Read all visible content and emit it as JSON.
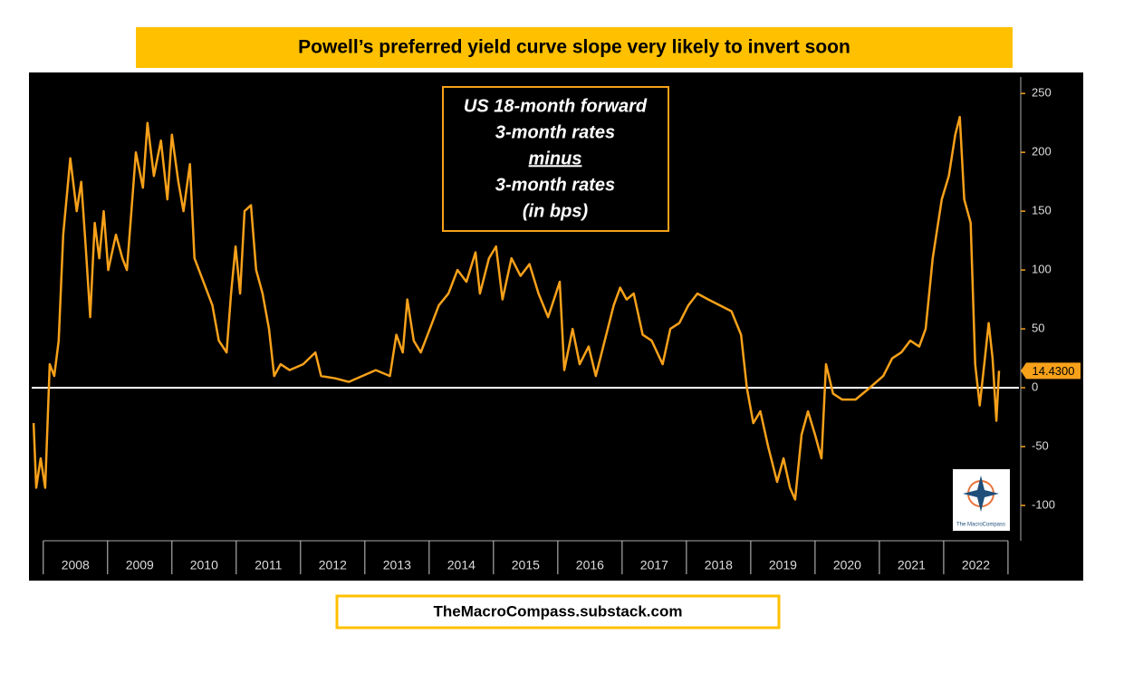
{
  "chart_data": {
    "type": "line",
    "title": "Powell’s preferred yield curve slope very likely to invert soon",
    "annotation": [
      "US 18-month forward",
      "3-month rates",
      "minus",
      "3-month rates",
      "(in bps)"
    ],
    "footer": "TheMacroCompass.substack.com",
    "logo": "The MacroCompass",
    "color": "#f7a11a",
    "zero_line": 0,
    "last_value": {
      "value": 14.43,
      "label": "14.4300"
    },
    "x": [
      2007.85,
      2007.89,
      2007.96,
      2008.03,
      2008.1,
      2008.17,
      2008.24,
      2008.31,
      2008.42,
      2008.52,
      2008.59,
      2008.66,
      2008.73,
      2008.8,
      2008.87,
      2008.94,
      2009.01,
      2009.13,
      2009.23,
      2009.3,
      2009.37,
      2009.44,
      2009.55,
      2009.62,
      2009.72,
      2009.83,
      2009.93,
      2010.0,
      2010.1,
      2010.18,
      2010.28,
      2010.35,
      2010.49,
      2010.63,
      2010.73,
      2010.85,
      2010.92,
      2010.99,
      2011.06,
      2011.13,
      2011.23,
      2011.31,
      2011.41,
      2011.51,
      2011.59,
      2011.69,
      2011.83,
      2012.04,
      2012.23,
      2012.32,
      2012.54,
      2012.75,
      2012.96,
      2013.17,
      2013.39,
      2013.49,
      2013.59,
      2013.66,
      2013.76,
      2013.87,
      2014.01,
      2014.15,
      2014.3,
      2014.44,
      2014.58,
      2014.72,
      2014.79,
      2014.93,
      2015.04,
      2015.14,
      2015.28,
      2015.42,
      2015.56,
      2015.7,
      2015.85,
      2016.03,
      2016.1,
      2016.23,
      2016.34,
      2016.48,
      2016.59,
      2016.73,
      2016.87,
      2016.97,
      2017.07,
      2017.18,
      2017.32,
      2017.46,
      2017.63,
      2017.75,
      2017.89,
      2018.03,
      2018.17,
      2018.34,
      2018.52,
      2018.7,
      2018.85,
      2018.94,
      2019.04,
      2019.15,
      2019.27,
      2019.41,
      2019.51,
      2019.61,
      2019.69,
      2019.79,
      2019.89,
      2020.0,
      2020.1,
      2020.17,
      2020.28,
      2020.42,
      2020.63,
      2020.85,
      2021.06,
      2021.2,
      2021.34,
      2021.48,
      2021.62,
      2021.72,
      2021.83,
      2021.97,
      2022.08,
      2022.18,
      2022.25,
      2022.32,
      2022.42,
      2022.49,
      2022.56,
      2022.63,
      2022.7,
      2022.76,
      2022.82,
      2022.86
    ],
    "values": [
      -30,
      -85,
      -60,
      -85,
      20,
      10,
      40,
      130,
      195,
      150,
      175,
      120,
      60,
      140,
      110,
      150,
      100,
      130,
      110,
      100,
      150,
      200,
      170,
      225,
      180,
      210,
      160,
      215,
      175,
      150,
      190,
      110,
      90,
      70,
      40,
      30,
      80,
      120,
      80,
      150,
      155,
      100,
      80,
      50,
      10,
      20,
      15,
      20,
      30,
      10,
      8,
      5,
      10,
      15,
      10,
      45,
      30,
      75,
      40,
      30,
      50,
      70,
      80,
      100,
      90,
      115,
      80,
      110,
      120,
      75,
      110,
      95,
      105,
      80,
      60,
      90,
      15,
      50,
      20,
      35,
      10,
      40,
      70,
      85,
      75,
      80,
      45,
      40,
      20,
      50,
      55,
      70,
      80,
      75,
      70,
      65,
      45,
      0,
      -30,
      -20,
      -50,
      -80,
      -60,
      -85,
      -95,
      -40,
      -20,
      -40,
      -60,
      20,
      -5,
      -10,
      -10,
      0,
      10,
      25,
      30,
      40,
      35,
      50,
      110,
      160,
      180,
      215,
      230,
      160,
      140,
      20,
      -15,
      20,
      55,
      25,
      -28,
      14.43
    ],
    "xlim": [
      2007.82,
      2023.17
    ],
    "xticks": [
      2008,
      2009,
      2010,
      2011,
      2012,
      2013,
      2014,
      2015,
      2016,
      2017,
      2018,
      2019,
      2020,
      2021,
      2022
    ],
    "ylim": [
      -130,
      264
    ],
    "yticks": [
      250,
      200,
      150,
      100,
      50,
      0,
      -50,
      -100
    ]
  }
}
